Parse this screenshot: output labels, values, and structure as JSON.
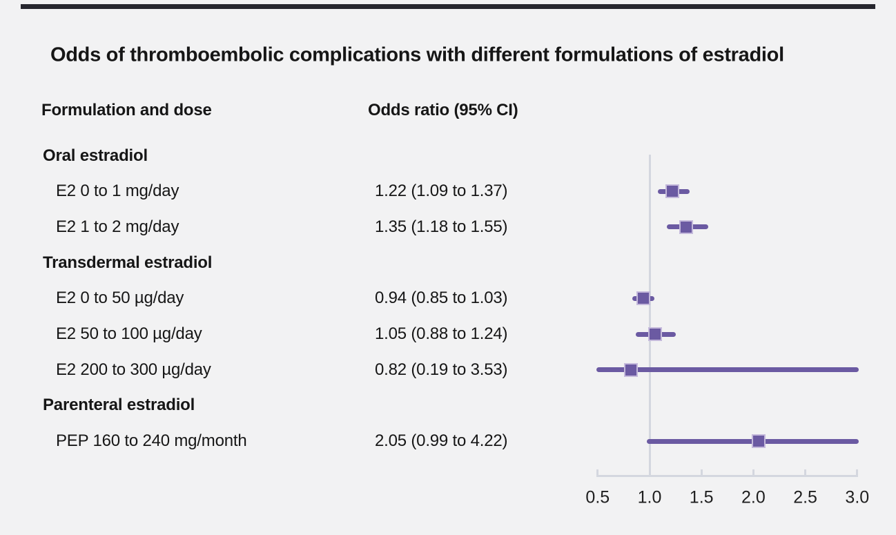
{
  "title": "Odds of thromboembolic complications with different formulations of estradiol",
  "columns": {
    "formulation": "Formulation and dose",
    "odds_ratio": "Odds ratio (95% CI)"
  },
  "colors": {
    "background": "#f2f2f3",
    "top_bar": "#26262e",
    "text": "#161616",
    "ci_line": "#6b5aa2",
    "marker_fill": "#6b5aa2",
    "marker_border": "#c4b9db",
    "axis": "#d4d7df",
    "reference_line": "#d4d7df"
  },
  "chart_data": {
    "type": "forest",
    "title": "Odds of thromboembolic complications with different formulations of estradiol",
    "xlabel": "",
    "ylabel": "",
    "xlim": [
      0.5,
      3.0
    ],
    "x_ticks": [
      "0.5",
      "1.0",
      "1.5",
      "2.0",
      "2.5",
      "3.0"
    ],
    "x_tick_values": [
      0.5,
      1.0,
      1.5,
      2.0,
      2.5,
      3.0
    ],
    "reference_value": 1.0,
    "grid": false,
    "legend": false,
    "rows": [
      {
        "kind": "group",
        "label": "Oral estradiol",
        "or_text": "",
        "or": null,
        "lo": null,
        "hi": null
      },
      {
        "kind": "item",
        "label": "E2 0 to 1 mg/day",
        "or_text": "1.22 (1.09 to 1.37)",
        "or": 1.22,
        "lo": 1.09,
        "hi": 1.37
      },
      {
        "kind": "item",
        "label": "E2 1 to 2 mg/day",
        "or_text": "1.35 (1.18 to 1.55)",
        "or": 1.35,
        "lo": 1.18,
        "hi": 1.55
      },
      {
        "kind": "group",
        "label": "Transdermal estradiol",
        "or_text": "",
        "or": null,
        "lo": null,
        "hi": null
      },
      {
        "kind": "item",
        "label": "E2 0 to 50 µg/day",
        "or_text": "0.94 (0.85 to 1.03)",
        "or": 0.94,
        "lo": 0.85,
        "hi": 1.03
      },
      {
        "kind": "item",
        "label": "E2 50 to 100 µg/day",
        "or_text": "1.05 (0.88 to 1.24)",
        "or": 1.05,
        "lo": 0.88,
        "hi": 1.24
      },
      {
        "kind": "item",
        "label": "E2 200 to 300 µg/day",
        "or_text": "0.82 (0.19 to 3.53)",
        "or": 0.82,
        "lo": 0.19,
        "hi": 3.53
      },
      {
        "kind": "group",
        "label": "Parenteral estradiol",
        "or_text": "",
        "or": null,
        "lo": null,
        "hi": null
      },
      {
        "kind": "item",
        "label": "PEP 160 to 240 mg/month",
        "or_text": "2.05 (0.99 to 4.22)",
        "or": 2.05,
        "lo": 0.99,
        "hi": 4.22
      }
    ]
  }
}
